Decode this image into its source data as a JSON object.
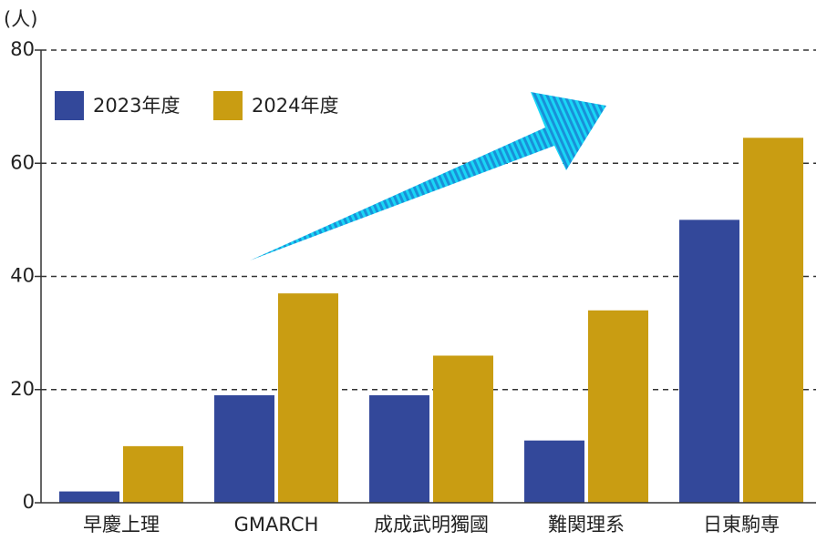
{
  "chart_data": {
    "type": "bar",
    "y_label": "(人)",
    "categories": [
      "早慶上理",
      "GMARCH",
      "成成武明獨國",
      "難関理系",
      "日東駒専"
    ],
    "series": [
      {
        "name": "2023年度",
        "color": "#33489a",
        "values": [
          2,
          19,
          19,
          11,
          50
        ]
      },
      {
        "name": "2024年度",
        "color": "#c99d12",
        "values": [
          10,
          37,
          26,
          34,
          64.5
        ]
      }
    ],
    "ylim": [
      0,
      80
    ],
    "yticks": [
      0,
      20,
      40,
      60,
      80
    ],
    "grid": true,
    "legend": "upper left"
  }
}
